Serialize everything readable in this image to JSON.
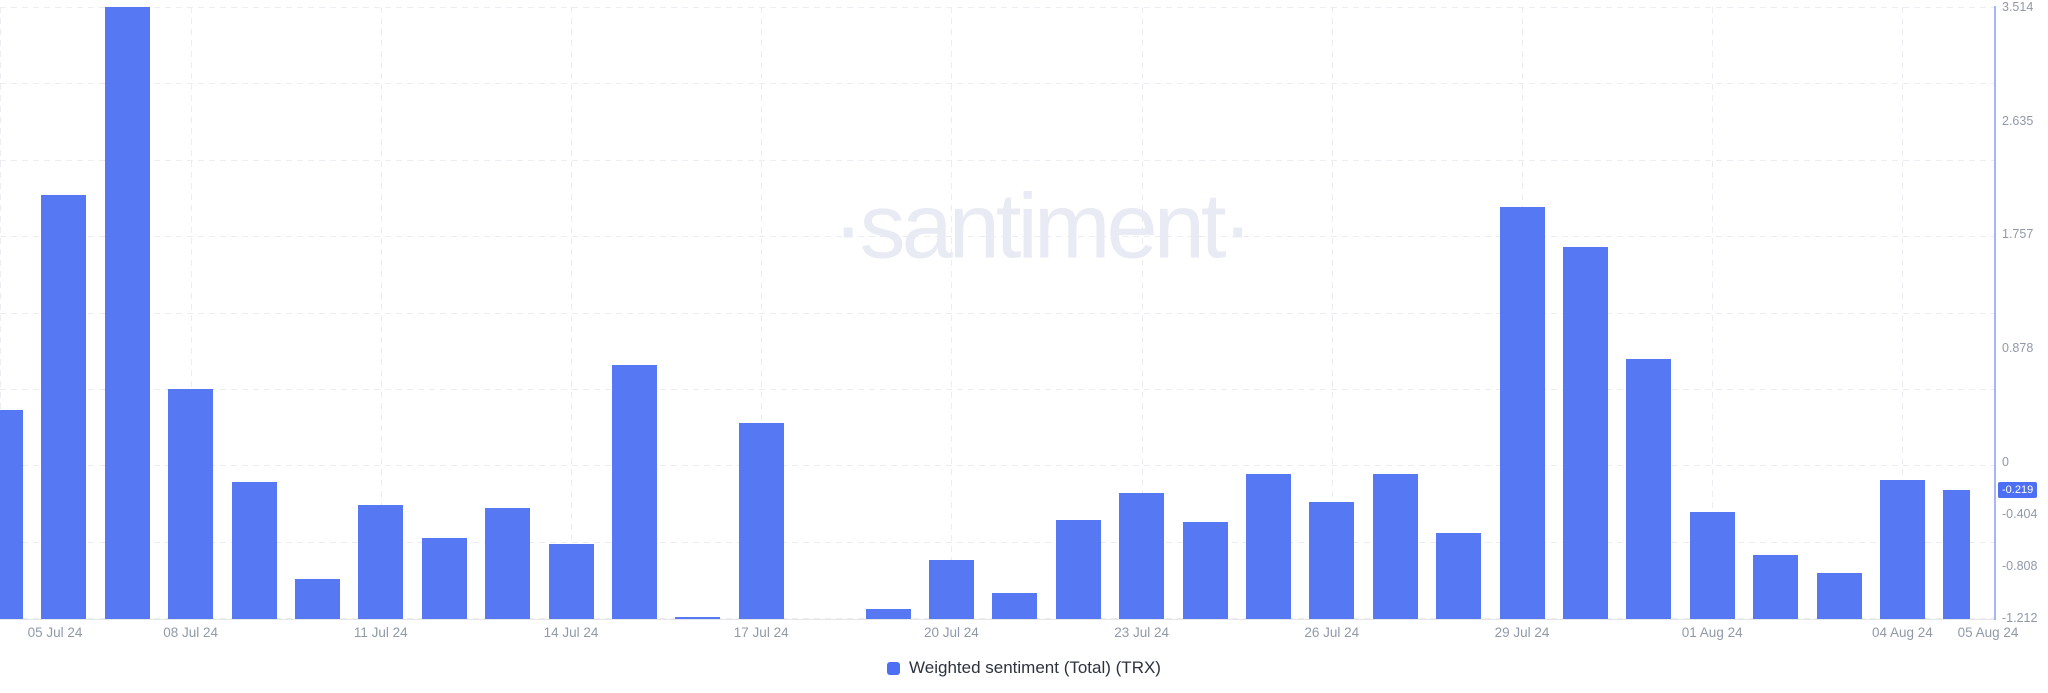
{
  "watermark": {
    "text": "·santiment·"
  },
  "legend": {
    "label": "Weighted sentiment (Total) (TRX)"
  },
  "chart_data": {
    "type": "bar",
    "title": "",
    "xlabel": "",
    "ylabel": "",
    "series_name": "Weighted sentiment (Total) (TRX)",
    "x": [
      "05 Jul 24",
      "06 Jul 24",
      "07 Jul 24",
      "08 Jul 24",
      "09 Jul 24",
      "10 Jul 24",
      "11 Jul 24",
      "12 Jul 24",
      "13 Jul 24",
      "14 Jul 24",
      "15 Jul 24",
      "16 Jul 24",
      "17 Jul 24",
      "18 Jul 24",
      "19 Jul 24",
      "20 Jul 24",
      "21 Jul 24",
      "22 Jul 24",
      "23 Jul 24",
      "24 Jul 24",
      "25 Jul 24",
      "26 Jul 24",
      "27 Jul 24",
      "28 Jul 24",
      "29 Jul 24",
      "30 Jul 24",
      "31 Jul 24",
      "01 Aug 24",
      "02 Aug 24",
      "03 Aug 24",
      "04 Aug 24",
      "05 Aug 24"
    ],
    "values": [
      0.4,
      2.06,
      3.514,
      0.56,
      -0.16,
      -0.91,
      -0.34,
      -0.59,
      -0.36,
      -0.64,
      0.75,
      -1.2,
      0.3,
      -1.212,
      -1.14,
      -0.76,
      -1.02,
      -0.45,
      -0.24,
      -0.47,
      -0.1,
      -0.31,
      -0.1,
      -0.55,
      1.97,
      1.66,
      0.79,
      -0.39,
      -0.72,
      -0.86,
      -0.14,
      -0.219
    ],
    "ylim": [
      -1.212,
      3.514
    ],
    "grid": "dashed, 8 equal horizontal intervals; vertical line at each 3-day tick",
    "legend_position": "bottom-center",
    "x_ticks": [
      {
        "index": 0,
        "label": "05 Jul 24"
      },
      {
        "index": 3,
        "label": "08 Jul 24"
      },
      {
        "index": 6,
        "label": "11 Jul 24"
      },
      {
        "index": 9,
        "label": "14 Jul 24"
      },
      {
        "index": 12,
        "label": "17 Jul 24"
      },
      {
        "index": 15,
        "label": "20 Jul 24"
      },
      {
        "index": 18,
        "label": "23 Jul 24"
      },
      {
        "index": 21,
        "label": "26 Jul 24"
      },
      {
        "index": 24,
        "label": "29 Jul 24"
      },
      {
        "index": 27,
        "label": "01 Aug 24"
      },
      {
        "index": 30,
        "label": "04 Aug 24"
      },
      {
        "index": 31,
        "label": "05 Aug 24"
      }
    ],
    "y_ticks": [
      {
        "label": "3.514",
        "value": 3.514
      },
      {
        "label": "2.635",
        "value": 2.635
      },
      {
        "label": "1.757",
        "value": 1.757
      },
      {
        "label": "0.878",
        "value": 0.878
      },
      {
        "label": "0",
        "value": 0
      },
      {
        "label": "-0.404",
        "value": -0.404
      },
      {
        "label": "-0.808",
        "value": -0.808
      },
      {
        "label": "-1.212",
        "value": -1.212
      }
    ],
    "current_value_badge": {
      "label": "-0.219",
      "value": -0.219
    }
  },
  "colors": {
    "bar": "#5778f3",
    "axis_line": "#a6b5f7",
    "badge_bg": "#4d6ff3",
    "badge_text": "#ffffff",
    "tick_text": "#9199a8",
    "legend_text": "#2c323e",
    "watermark": "#e8eaf4",
    "gridline": "#ebedf1",
    "baseline": "#e4e6ea"
  }
}
